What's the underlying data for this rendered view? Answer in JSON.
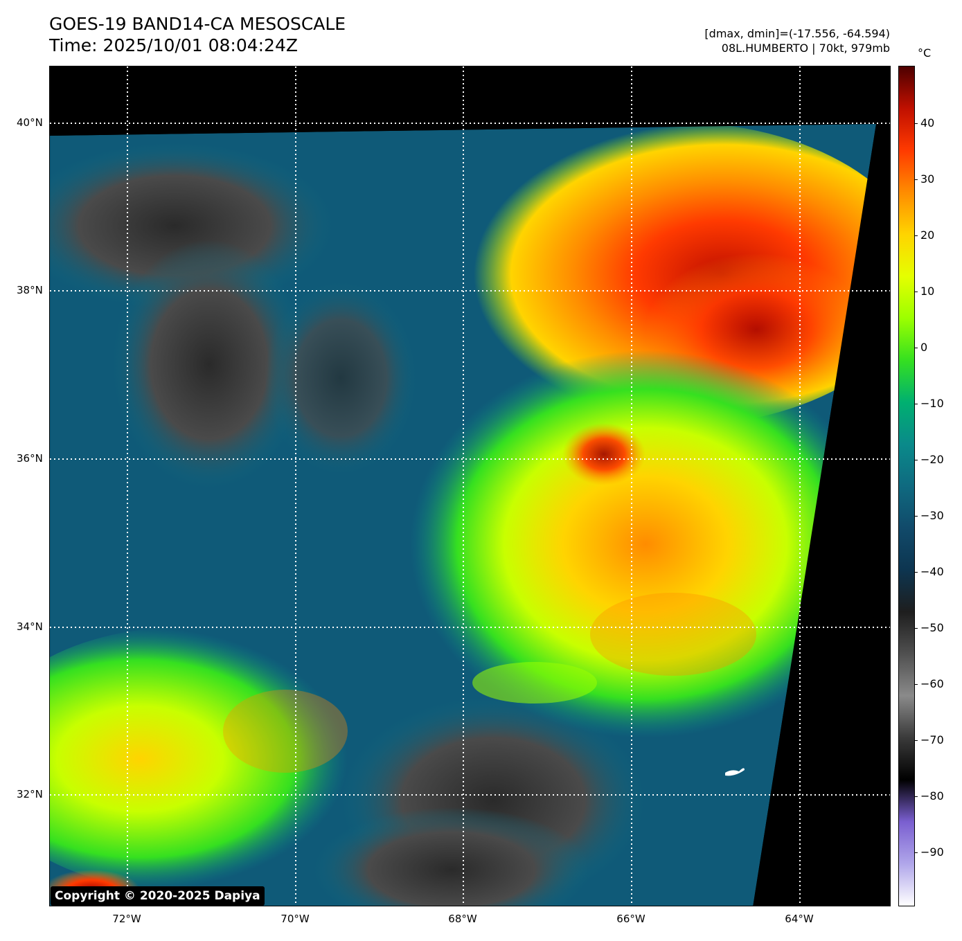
{
  "title": "GOES-19 BAND14-CA MESOSCALE",
  "time": "Time: 2025/10/01 08:04:24Z",
  "dmax_dmin": "[dmax, dmin]=(-17.556, -64.594)",
  "storm": "08L.HUMBERTO | 70kt, 979mb",
  "copyright": "Copyright © 2020-2025 Dapiya",
  "colorbar": {
    "unit": "°C",
    "ticks": [
      "40",
      "30",
      "20",
      "10",
      "0",
      "−10",
      "−20",
      "−30",
      "−40",
      "−50",
      "−60",
      "−70",
      "−80",
      "−90"
    ],
    "colors": [
      "#4d0000",
      "#c01000",
      "#ff3a00",
      "#ff8c00",
      "#ffd400",
      "#e5ff00",
      "#9cff00",
      "#35e020",
      "#00b070",
      "#0a8a8a",
      "#0f6a80",
      "#114a6a",
      "#0d3550",
      "#1e1e1e",
      "#505050",
      "#8a8a8a",
      "#3a3a3a",
      "#000000",
      "#7a5fd0",
      "#b0a6ea",
      "#ffffff"
    ]
  },
  "map": {
    "lat_labels": [
      "40°N",
      "38°N",
      "36°N",
      "34°N",
      "32°N"
    ],
    "lon_labels": [
      "72°W",
      "70°W",
      "68°W",
      "66°W",
      "64°W"
    ],
    "grid": "dotted white"
  }
}
